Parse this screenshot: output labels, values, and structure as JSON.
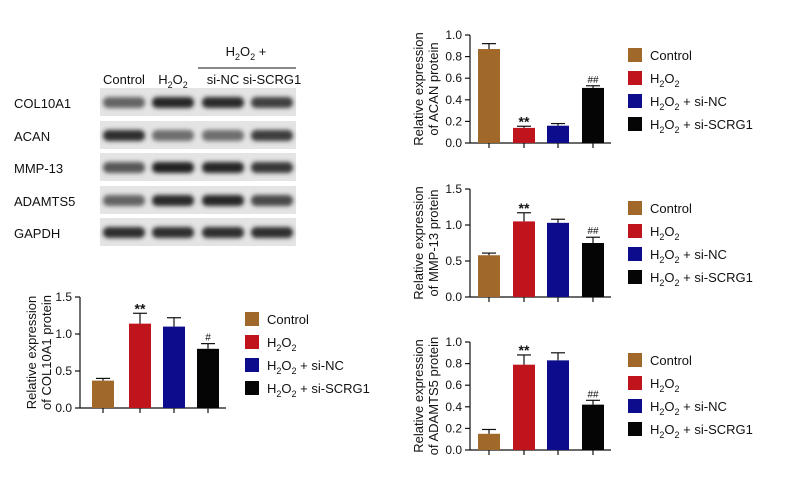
{
  "blot": {
    "header": {
      "group_title": "H2O2 +",
      "lanes": [
        "Control",
        "H2O2",
        "si-NC",
        "si-SCRG1"
      ]
    },
    "rows": [
      {
        "label": "COL10A1",
        "intensity": [
          0.55,
          0.9,
          0.88,
          0.75
        ]
      },
      {
        "label": "ACAN",
        "intensity": [
          0.85,
          0.5,
          0.5,
          0.78
        ]
      },
      {
        "label": "MMP-13",
        "intensity": [
          0.62,
          0.92,
          0.9,
          0.8
        ]
      },
      {
        "label": "ADAMTS5",
        "intensity": [
          0.55,
          0.88,
          0.9,
          0.7
        ]
      },
      {
        "label": "GAPDH",
        "intensity": [
          0.85,
          0.85,
          0.85,
          0.85
        ]
      }
    ]
  },
  "legend_entries": [
    "Control",
    "H2O2",
    "H2O2 + si-NC",
    "H2O2 + si-SCRG1"
  ],
  "colors": [
    "#a0692a",
    "#c0141c",
    "#0c0c8c",
    "#050505"
  ],
  "chart_data": [
    {
      "id": "col10a1",
      "type": "bar",
      "categories": [
        "Control",
        "H2O2",
        "H2O2 + si-NC",
        "H2O2 + si-SCRG1"
      ],
      "values": [
        0.37,
        1.14,
        1.1,
        0.8
      ],
      "errors": [
        0.03,
        0.14,
        0.12,
        0.07
      ],
      "annotations": [
        "",
        "**",
        "",
        "#"
      ],
      "ylabel_line1": "Relative expression",
      "ylabel_line2": "of COL10A1 protein",
      "ylim": [
        0,
        1.5
      ],
      "yticks": [
        "0.0",
        "0.5",
        "1.0",
        "1.5"
      ]
    },
    {
      "id": "acan",
      "type": "bar",
      "categories": [
        "Control",
        "H2O2",
        "H2O2 + si-NC",
        "H2O2 + si-SCRG1"
      ],
      "values": [
        0.87,
        0.14,
        0.16,
        0.51
      ],
      "errors": [
        0.05,
        0.015,
        0.02,
        0.02
      ],
      "annotations": [
        "",
        "**",
        "",
        "##"
      ],
      "ylabel_line1": "Relative expression",
      "ylabel_line2": "of ACAN protein",
      "ylim": [
        0,
        1.0
      ],
      "yticks": [
        "0.0",
        "0.2",
        "0.4",
        "0.6",
        "0.8",
        "1.0"
      ]
    },
    {
      "id": "mmp13",
      "type": "bar",
      "categories": [
        "Control",
        "H2O2",
        "H2O2 + si-NC",
        "H2O2 + si-SCRG1"
      ],
      "values": [
        0.58,
        1.05,
        1.03,
        0.75
      ],
      "errors": [
        0.03,
        0.12,
        0.05,
        0.08
      ],
      "annotations": [
        "",
        "**",
        "",
        "##"
      ],
      "ylabel_line1": "Relative expression",
      "ylabel_line2": "of MMP-13 protein",
      "ylim": [
        0,
        1.5
      ],
      "yticks": [
        "0.0",
        "0.5",
        "1.0",
        "1.5"
      ]
    },
    {
      "id": "adamts5",
      "type": "bar",
      "categories": [
        "Control",
        "H2O2",
        "H2O2 + si-NC",
        "H2O2 + si-SCRG1"
      ],
      "values": [
        0.15,
        0.79,
        0.83,
        0.42
      ],
      "errors": [
        0.04,
        0.09,
        0.07,
        0.04
      ],
      "annotations": [
        "",
        "**",
        "",
        "##"
      ],
      "ylabel_line1": "Relative expression",
      "ylabel_line2": "of ADAMTS5 protein",
      "ylim": [
        0,
        1.0
      ],
      "yticks": [
        "0.0",
        "0.2",
        "0.4",
        "0.6",
        "0.8",
        "1.0"
      ]
    }
  ]
}
